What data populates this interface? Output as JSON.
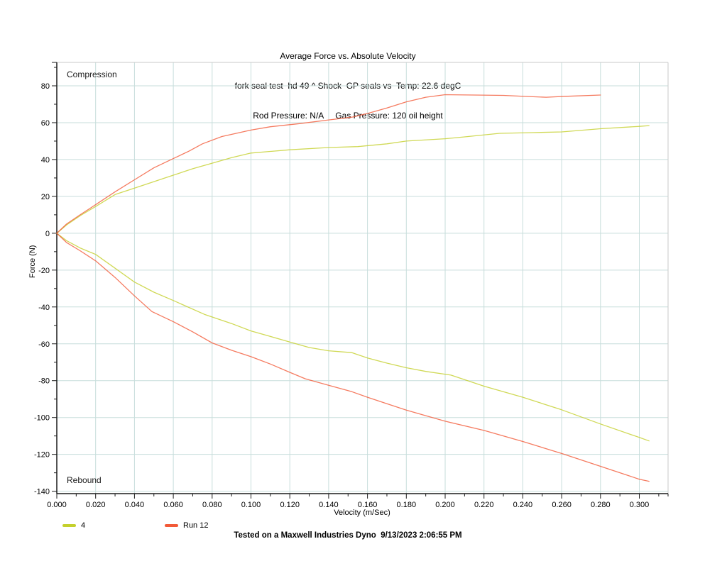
{
  "footer": {
    "text": "Tested on a Maxwell Industries Dyno  9/13/2023 2:06:55 PM"
  },
  "chart_data": {
    "type": "line",
    "title": "Average Force vs. Absolute Velocity",
    "subtitle1": "fork seal test  hd 49 ^ Shock  GP seals vs  Temp: 22.6 degC",
    "subtitle2": "Rod Pressure: N/A     Gas Pressure: 120 oil height",
    "xlabel": "Velocity (m/Sec)",
    "ylabel": "Force (N)",
    "xlim": [
      0,
      0.3148
    ],
    "ylim": [
      -141.3,
      92.7
    ],
    "grid": true,
    "grid_color": "#c7dddb",
    "border_color": "#c9c9c9",
    "axis_color": "#1a1a1a",
    "legend_position": "bottom-left",
    "annotations": {
      "top_left": "Compression",
      "bottom_left": "Rebound"
    },
    "x_ticks": {
      "major_step": 0.02,
      "minor_step": 0.01,
      "label_min": 0.0,
      "label_max": 0.3,
      "decimals": 3
    },
    "y_ticks": {
      "major_step": 20,
      "minor_step": 10,
      "label_min": -140,
      "label_max": 80
    },
    "series": [
      {
        "name": "4",
        "color": "#c4d02c",
        "compression": [
          [
            0,
            0
          ],
          [
            0.005,
            4.5
          ],
          [
            0.012,
            9.5
          ],
          [
            0.02,
            14.5
          ],
          [
            0.03,
            21
          ],
          [
            0.04,
            24.5
          ],
          [
            0.05,
            28
          ],
          [
            0.06,
            31.5
          ],
          [
            0.07,
            35
          ],
          [
            0.08,
            38
          ],
          [
            0.09,
            41
          ],
          [
            0.1,
            43.5
          ],
          [
            0.12,
            45.3
          ],
          [
            0.14,
            46.5
          ],
          [
            0.155,
            47
          ],
          [
            0.17,
            48.5
          ],
          [
            0.18,
            50
          ],
          [
            0.2,
            51.3
          ],
          [
            0.21,
            52.3
          ],
          [
            0.228,
            54.2
          ],
          [
            0.245,
            54.6
          ],
          [
            0.26,
            55
          ],
          [
            0.28,
            56.7
          ],
          [
            0.3,
            58
          ],
          [
            0.305,
            58.4
          ]
        ],
        "rebound": [
          [
            0,
            0
          ],
          [
            0.005,
            -4
          ],
          [
            0.012,
            -8
          ],
          [
            0.02,
            -11.5
          ],
          [
            0.03,
            -19
          ],
          [
            0.04,
            -26.5
          ],
          [
            0.05,
            -32
          ],
          [
            0.06,
            -36.5
          ],
          [
            0.076,
            -44
          ],
          [
            0.09,
            -49
          ],
          [
            0.1,
            -53
          ],
          [
            0.11,
            -56
          ],
          [
            0.12,
            -59
          ],
          [
            0.13,
            -62
          ],
          [
            0.14,
            -63.8
          ],
          [
            0.152,
            -64.8
          ],
          [
            0.16,
            -67.7
          ],
          [
            0.17,
            -70.5
          ],
          [
            0.18,
            -73
          ],
          [
            0.19,
            -75
          ],
          [
            0.203,
            -77
          ],
          [
            0.22,
            -83
          ],
          [
            0.24,
            -89
          ],
          [
            0.26,
            -95.8
          ],
          [
            0.28,
            -103.5
          ],
          [
            0.3,
            -110.8
          ],
          [
            0.305,
            -112.7
          ]
        ]
      },
      {
        "name": "Run 12",
        "color": "#f25a38",
        "compression": [
          [
            0,
            0
          ],
          [
            0.005,
            5
          ],
          [
            0.012,
            10
          ],
          [
            0.02,
            15.5
          ],
          [
            0.03,
            22.5
          ],
          [
            0.04,
            29
          ],
          [
            0.05,
            35.5
          ],
          [
            0.06,
            40.5
          ],
          [
            0.068,
            44.5
          ],
          [
            0.075,
            48.5
          ],
          [
            0.085,
            52.5
          ],
          [
            0.1,
            56
          ],
          [
            0.11,
            57.8
          ],
          [
            0.125,
            59.5
          ],
          [
            0.14,
            61.5
          ],
          [
            0.152,
            63
          ],
          [
            0.16,
            65
          ],
          [
            0.17,
            68
          ],
          [
            0.18,
            71.3
          ],
          [
            0.19,
            73.8
          ],
          [
            0.2,
            75.2
          ],
          [
            0.215,
            75
          ],
          [
            0.23,
            74.8
          ],
          [
            0.243,
            74.2
          ],
          [
            0.252,
            73.8
          ],
          [
            0.262,
            74.3
          ],
          [
            0.28,
            75
          ]
        ],
        "rebound": [
          [
            0,
            0
          ],
          [
            0.005,
            -5
          ],
          [
            0.012,
            -9.5
          ],
          [
            0.02,
            -15
          ],
          [
            0.03,
            -24
          ],
          [
            0.04,
            -34
          ],
          [
            0.049,
            -42.5
          ],
          [
            0.06,
            -48
          ],
          [
            0.07,
            -53.5
          ],
          [
            0.08,
            -59.5
          ],
          [
            0.09,
            -63.5
          ],
          [
            0.1,
            -67
          ],
          [
            0.11,
            -71
          ],
          [
            0.12,
            -75.5
          ],
          [
            0.128,
            -79
          ],
          [
            0.14,
            -82.5
          ],
          [
            0.152,
            -86
          ],
          [
            0.16,
            -89
          ],
          [
            0.17,
            -92.5
          ],
          [
            0.18,
            -96
          ],
          [
            0.19,
            -99
          ],
          [
            0.2,
            -102
          ],
          [
            0.22,
            -107
          ],
          [
            0.24,
            -113
          ],
          [
            0.26,
            -119.5
          ],
          [
            0.28,
            -126.5
          ],
          [
            0.3,
            -133.5
          ],
          [
            0.305,
            -134.6
          ]
        ]
      }
    ]
  }
}
